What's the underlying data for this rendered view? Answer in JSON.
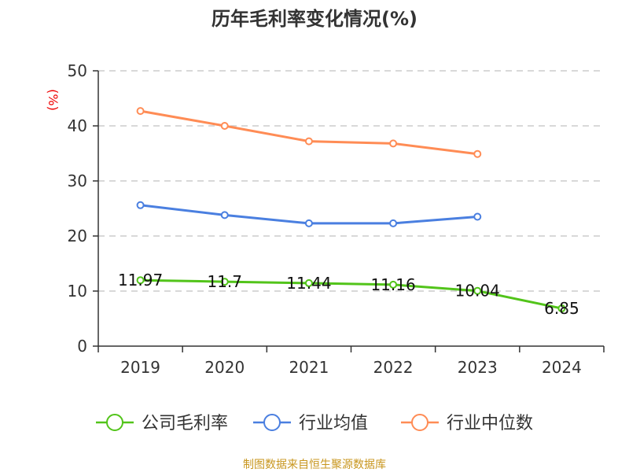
{
  "chart_data": {
    "type": "line",
    "title": "历年毛利率变化情况(%)",
    "ylabel": "(%)",
    "xlabel": "",
    "ylim": [
      0,
      50
    ],
    "yticks": [
      0,
      10,
      20,
      30,
      40,
      50
    ],
    "grid": true,
    "legend_position": "bottom",
    "categories": [
      "2019",
      "2020",
      "2021",
      "2022",
      "2023",
      "2024"
    ],
    "series": [
      {
        "name": "公司毛利率",
        "color": "#52c41a",
        "values": [
          11.97,
          11.7,
          11.44,
          11.16,
          10.04,
          6.85
        ],
        "labels": [
          "11.97",
          "11.7",
          "11.44",
          "11.16",
          "10.04",
          "6.85"
        ]
      },
      {
        "name": "行业均值",
        "color": "#4a7fe0",
        "values": [
          25.6,
          23.8,
          22.3,
          22.3,
          23.5,
          null
        ]
      },
      {
        "name": "行业中位数",
        "color": "#ff8c55",
        "values": [
          42.7,
          40.0,
          37.2,
          36.8,
          34.9,
          null
        ]
      }
    ],
    "source": "制图数据来自恒生聚源数据库"
  }
}
